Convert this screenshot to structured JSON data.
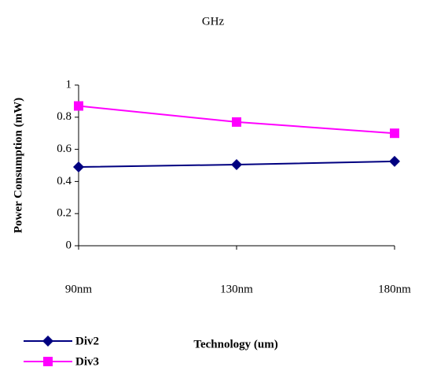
{
  "chart_data": {
    "type": "line",
    "title": "GHz",
    "x_label": "Technology (um)",
    "y_label": "Power Consumption (mW)",
    "categories": [
      "90nm",
      "130nm",
      "180nm"
    ],
    "series": [
      {
        "name": "Div2",
        "color": "#000080",
        "marker": "diamond",
        "values": [
          0.49,
          0.505,
          0.525
        ]
      },
      {
        "name": "Div3",
        "color": "#ff00ff",
        "marker": "square",
        "values": [
          0.87,
          0.77,
          0.7
        ]
      }
    ],
    "ylim": [
      0,
      1
    ],
    "yticks": [
      0,
      0.2,
      0.4,
      0.6,
      0.8,
      1
    ],
    "grid": false,
    "legend": "bottom-left"
  }
}
